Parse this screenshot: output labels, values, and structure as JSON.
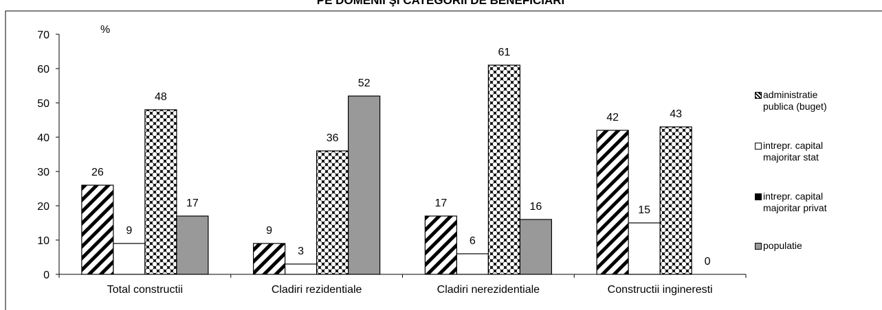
{
  "chart_data": {
    "type": "bar",
    "title": "PE DOMENII ŞI CATEGORII DE BENEFICIARI",
    "y_label": "%",
    "categories": [
      "Total constructii",
      "Cladiri rezidentiale",
      "Cladiri nerezidentiale",
      "Constructii ingineresti"
    ],
    "series": [
      {
        "name": "administratie publica (buget)",
        "color": "hatched",
        "values": [
          26,
          9,
          17,
          42
        ]
      },
      {
        "name": "intrepr. capital majoritar stat",
        "color": "#ffffff",
        "values": [
          9,
          3,
          6,
          15
        ]
      },
      {
        "name": "intrepr. capital majoritar privat",
        "color": "checkered",
        "values": [
          48,
          36,
          61,
          43
        ]
      },
      {
        "name": "populatie",
        "color": "#999999",
        "values": [
          17,
          52,
          16,
          0
        ]
      }
    ],
    "ylim": [
      0,
      70
    ],
    "yticks": [
      0,
      10,
      20,
      30,
      40,
      50,
      60,
      70
    ],
    "grid": false
  }
}
